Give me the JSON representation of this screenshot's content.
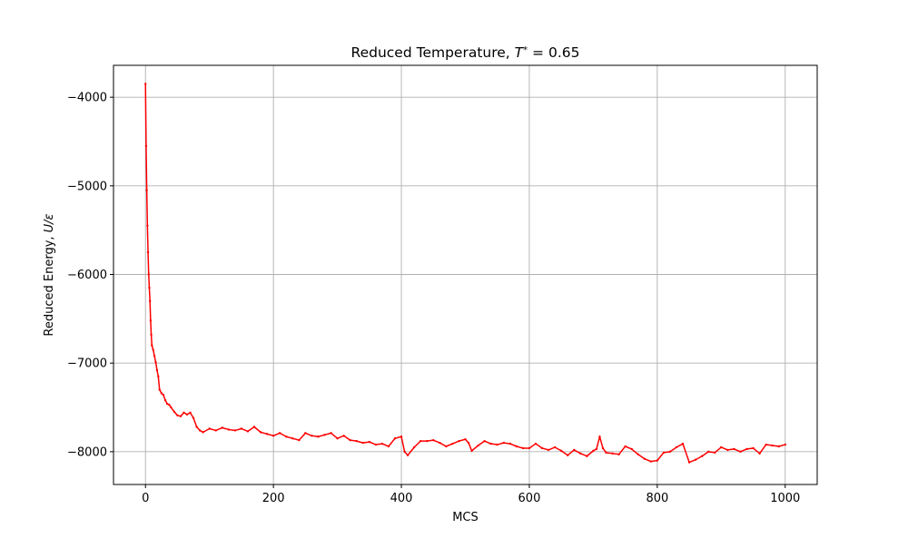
{
  "chart_data": {
    "type": "line",
    "title_prefix": "Reduced Temperature, ",
    "title_symbol": "T",
    "title_superscript": "*",
    "title_suffix": " = 0.65",
    "xlabel": "MCS",
    "ylabel_prefix": "Reduced Energy, ",
    "ylabel_symbol": "U/ε",
    "xlim": [
      -50,
      1050
    ],
    "ylim": [
      -8370,
      -3640
    ],
    "xticks": [
      0,
      200,
      400,
      600,
      800,
      1000
    ],
    "xtick_labels": [
      "0",
      "200",
      "400",
      "600",
      "800",
      "1000"
    ],
    "yticks": [
      -8000,
      -7000,
      -6000,
      -5000,
      -4000
    ],
    "ytick_labels": [
      "−8000",
      "−7000",
      "−6000",
      "−5000",
      "−4000"
    ],
    "grid": true,
    "legend": "none",
    "series": [
      {
        "color": "#ff0000",
        "marker": "dot",
        "x": [
          0,
          1,
          2,
          3,
          4,
          5,
          6,
          7,
          8,
          9,
          10,
          12,
          14,
          16,
          18,
          20,
          22,
          25,
          28,
          31,
          34,
          37,
          40,
          45,
          50,
          55,
          60,
          65,
          70,
          75,
          80,
          85,
          90,
          100,
          110,
          120,
          130,
          140,
          150,
          160,
          170,
          180,
          190,
          200,
          210,
          220,
          230,
          240,
          250,
          260,
          270,
          280,
          290,
          300,
          310,
          320,
          330,
          340,
          350,
          360,
          370,
          380,
          390,
          400,
          405,
          410,
          420,
          430,
          440,
          450,
          460,
          470,
          480,
          490,
          500,
          505,
          510,
          520,
          530,
          540,
          550,
          560,
          570,
          580,
          590,
          600,
          610,
          620,
          630,
          640,
          650,
          660,
          670,
          680,
          690,
          700,
          705,
          710,
          715,
          720,
          730,
          740,
          750,
          760,
          770,
          780,
          790,
          800,
          810,
          820,
          830,
          840,
          850,
          860,
          870,
          880,
          890,
          900,
          910,
          920,
          930,
          940,
          950,
          960,
          970,
          980,
          990,
          1000
        ],
        "y": [
          -3850,
          -4550,
          -5050,
          -5450,
          -5750,
          -6000,
          -6150,
          -6300,
          -6520,
          -6680,
          -6800,
          -6850,
          -6920,
          -6990,
          -7080,
          -7150,
          -7300,
          -7340,
          -7360,
          -7420,
          -7460,
          -7470,
          -7500,
          -7550,
          -7590,
          -7600,
          -7560,
          -7580,
          -7560,
          -7620,
          -7720,
          -7760,
          -7780,
          -7740,
          -7760,
          -7730,
          -7750,
          -7760,
          -7740,
          -7770,
          -7720,
          -7780,
          -7800,
          -7820,
          -7790,
          -7830,
          -7850,
          -7870,
          -7790,
          -7820,
          -7830,
          -7810,
          -7790,
          -7850,
          -7820,
          -7870,
          -7880,
          -7900,
          -7890,
          -7920,
          -7910,
          -7940,
          -7850,
          -7830,
          -8000,
          -8040,
          -7950,
          -7880,
          -7880,
          -7870,
          -7900,
          -7940,
          -7910,
          -7880,
          -7860,
          -7900,
          -7990,
          -7930,
          -7880,
          -7910,
          -7920,
          -7900,
          -7910,
          -7940,
          -7960,
          -7960,
          -7910,
          -7960,
          -7980,
          -7950,
          -7990,
          -8040,
          -7980,
          -8020,
          -8050,
          -7990,
          -7970,
          -7830,
          -7960,
          -8010,
          -8020,
          -8030,
          -7940,
          -7970,
          -8030,
          -8080,
          -8110,
          -8100,
          -8010,
          -8000,
          -7950,
          -7910,
          -8120,
          -8090,
          -8050,
          -8000,
          -8010,
          -7950,
          -7980,
          -7970,
          -8000,
          -7970,
          -7960,
          -8020,
          -7920,
          -7930,
          -7940,
          -7920
        ]
      }
    ]
  }
}
